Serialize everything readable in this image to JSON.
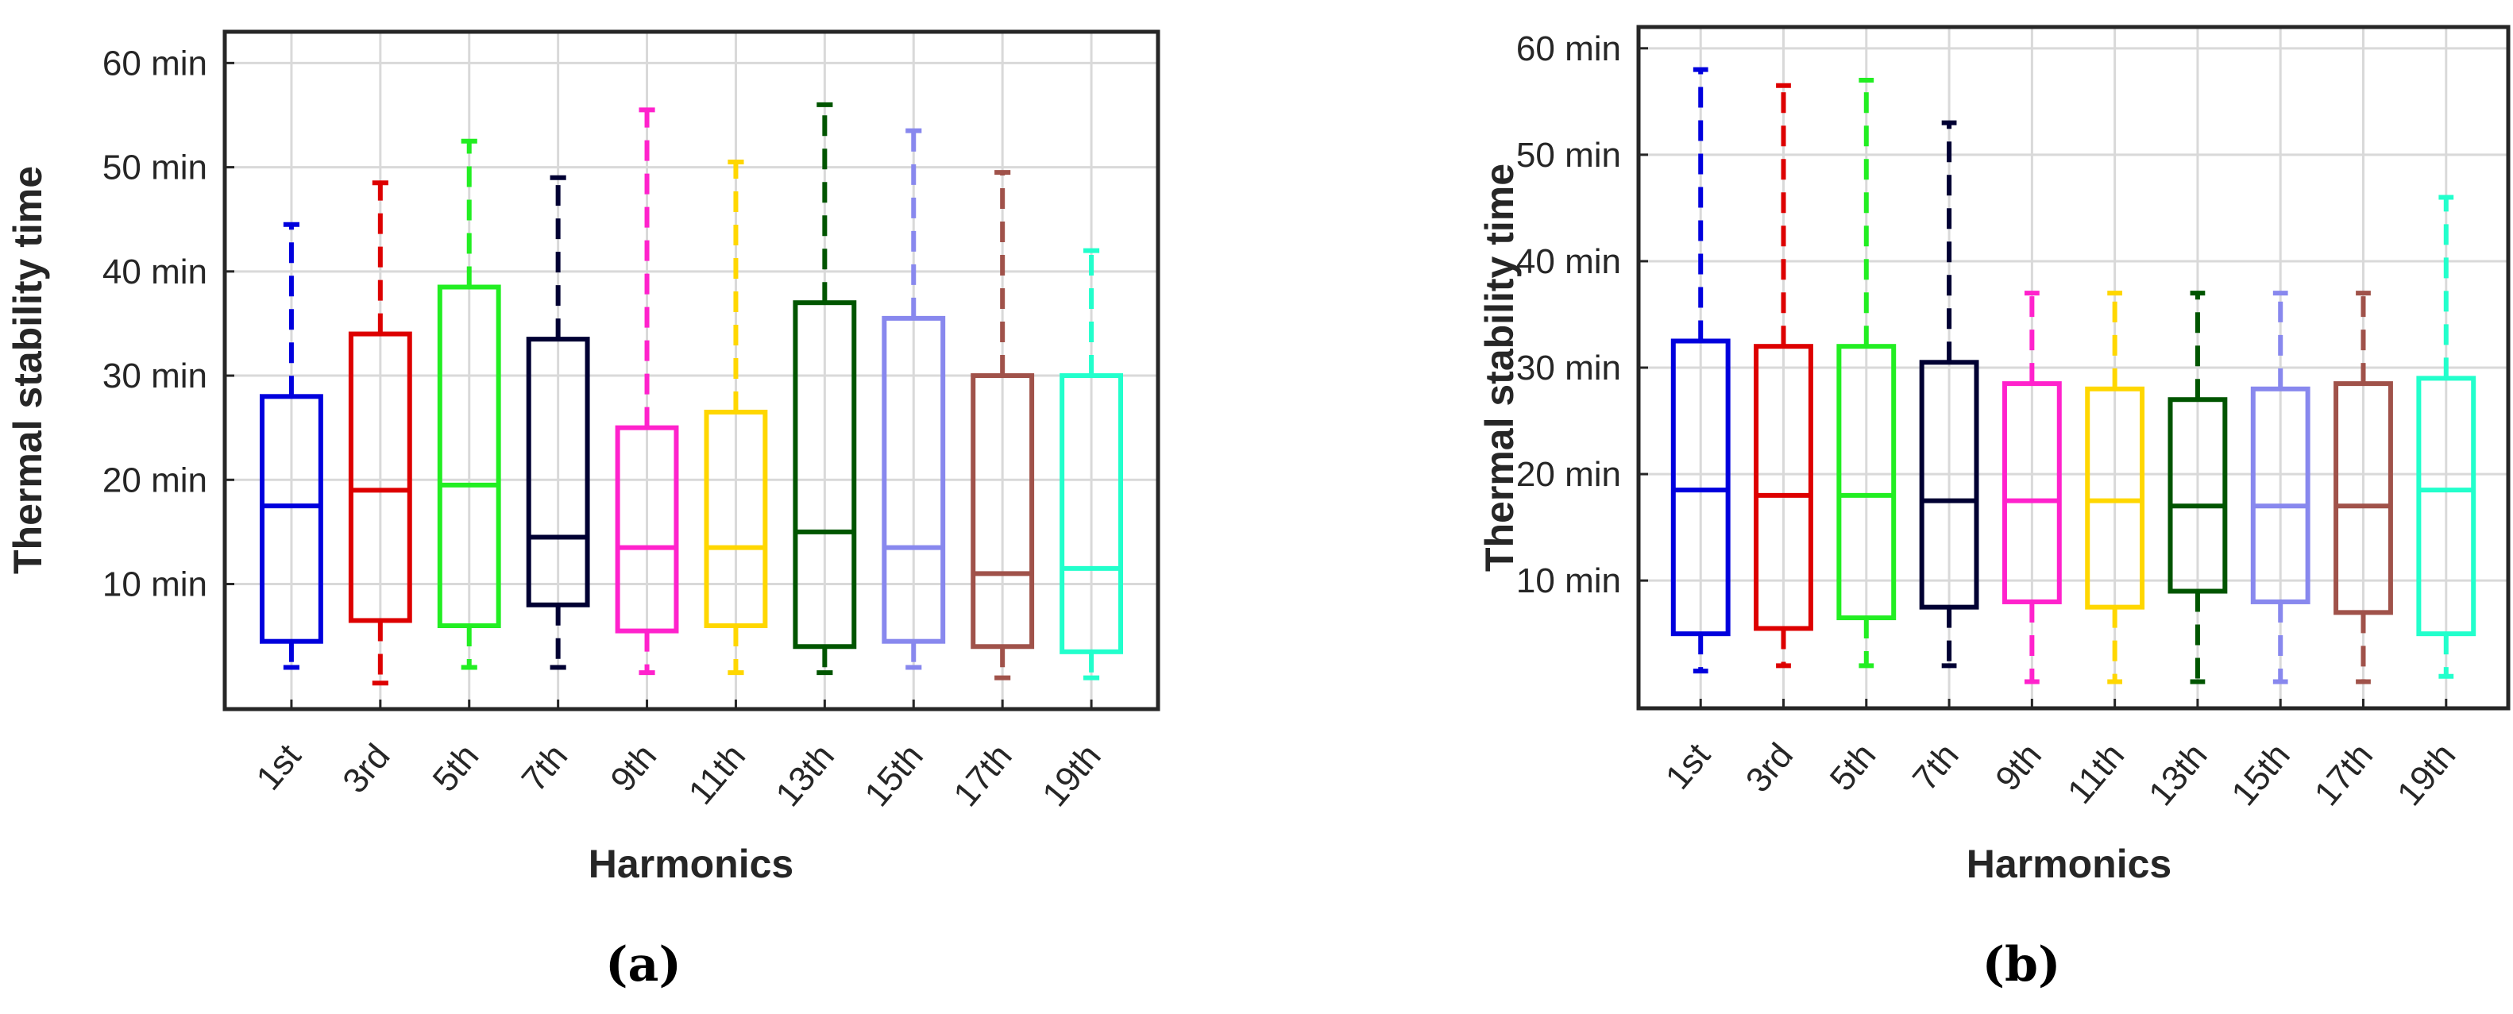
{
  "chart_data": [
    {
      "type": "box",
      "panel_label": "(a)",
      "xlabel": "Harmonics",
      "ylabel": "Thermal stability time",
      "ylim": [
        -2,
        63
      ],
      "yticks": [
        10,
        20,
        30,
        40,
        50,
        60
      ],
      "ytick_labels": [
        "10 min",
        "20 min",
        "30 min",
        "40 min",
        "50 min",
        "60 min"
      ],
      "grid": true,
      "categories": [
        "1st",
        "3rd",
        "5th",
        "7th",
        "9th",
        "11th",
        "13th",
        "15th",
        "17th",
        "19th"
      ],
      "colors": [
        "#0000dd",
        "#dd0000",
        "#22ee22",
        "#000033",
        "#ff22cc",
        "#ffd700",
        "#005500",
        "#8888ee",
        "#a0524a",
        "#22ffcc"
      ],
      "boxes": [
        {
          "min": 2.0,
          "q1": 4.5,
          "median": 17.5,
          "q3": 28.0,
          "max": 44.5
        },
        {
          "min": 0.5,
          "q1": 6.5,
          "median": 19.0,
          "q3": 34.0,
          "max": 48.5
        },
        {
          "min": 2.0,
          "q1": 6.0,
          "median": 19.5,
          "q3": 38.5,
          "max": 52.5
        },
        {
          "min": 2.0,
          "q1": 8.0,
          "median": 14.5,
          "q3": 33.5,
          "max": 49.0
        },
        {
          "min": 1.5,
          "q1": 5.5,
          "median": 13.5,
          "q3": 25.0,
          "max": 55.5
        },
        {
          "min": 1.5,
          "q1": 6.0,
          "median": 13.5,
          "q3": 26.5,
          "max": 50.5
        },
        {
          "min": 1.5,
          "q1": 4.0,
          "median": 15.0,
          "q3": 37.0,
          "max": 56.0
        },
        {
          "min": 2.0,
          "q1": 4.5,
          "median": 13.5,
          "q3": 35.5,
          "max": 53.5
        },
        {
          "min": 1.0,
          "q1": 4.0,
          "median": 11.0,
          "q3": 30.0,
          "max": 49.5
        },
        {
          "min": 1.0,
          "q1": 3.5,
          "median": 11.5,
          "q3": 30.0,
          "max": 42.0
        }
      ]
    },
    {
      "type": "box",
      "panel_label": "(b)",
      "xlabel": "Harmonics",
      "ylabel": "Thermal stability time",
      "ylim": [
        -2,
        62
      ],
      "yticks": [
        10,
        20,
        30,
        40,
        50,
        60
      ],
      "ytick_labels": [
        "10 min",
        "20 min",
        "30 min",
        "40 min",
        "50 min",
        "60 min"
      ],
      "grid": true,
      "categories": [
        "1st",
        "3rd",
        "5th",
        "7th",
        "9th",
        "11th",
        "13th",
        "15th",
        "17th",
        "19th"
      ],
      "colors": [
        "#0000dd",
        "#dd0000",
        "#22ee22",
        "#000033",
        "#ff22cc",
        "#ffd700",
        "#005500",
        "#8888ee",
        "#a0524a",
        "#22ffcc"
      ],
      "boxes": [
        {
          "min": 1.5,
          "q1": 5.0,
          "median": 18.5,
          "q3": 32.5,
          "max": 58.0
        },
        {
          "min": 2.0,
          "q1": 5.5,
          "median": 18.0,
          "q3": 32.0,
          "max": 56.5
        },
        {
          "min": 2.0,
          "q1": 6.5,
          "median": 18.0,
          "q3": 32.0,
          "max": 57.0
        },
        {
          "min": 2.0,
          "q1": 7.5,
          "median": 17.5,
          "q3": 30.5,
          "max": 53.0
        },
        {
          "min": 0.5,
          "q1": 8.0,
          "median": 17.5,
          "q3": 28.5,
          "max": 37.0
        },
        {
          "min": 0.5,
          "q1": 7.5,
          "median": 17.5,
          "q3": 28.0,
          "max": 37.0
        },
        {
          "min": 0.5,
          "q1": 9.0,
          "median": 17.0,
          "q3": 27.0,
          "max": 37.0
        },
        {
          "min": 0.5,
          "q1": 8.0,
          "median": 17.0,
          "q3": 28.0,
          "max": 37.0
        },
        {
          "min": 0.5,
          "q1": 7.0,
          "median": 17.0,
          "q3": 28.5,
          "max": 37.0
        },
        {
          "min": 1.0,
          "q1": 5.0,
          "median": 18.5,
          "q3": 29.0,
          "max": 46.0
        }
      ]
    }
  ]
}
